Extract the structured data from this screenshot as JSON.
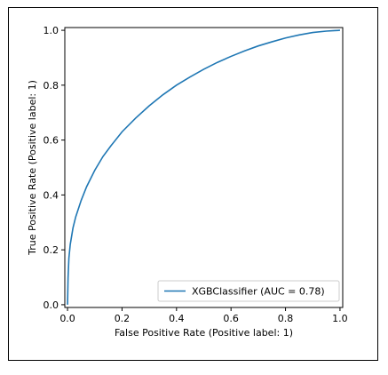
{
  "chart_data": {
    "type": "line",
    "title": "",
    "xlabel": "False Positive Rate (Positive label: 1)",
    "ylabel": "True Positive Rate (Positive label: 1)",
    "xlim": [
      -0.01,
      1.01
    ],
    "ylim": [
      -0.01,
      1.01
    ],
    "xticks": [
      "0.0",
      "0.2",
      "0.4",
      "0.6",
      "0.8",
      "1.0"
    ],
    "yticks": [
      "0.0",
      "0.2",
      "0.4",
      "0.6",
      "0.8",
      "1.0"
    ],
    "legend_position": "lower-right",
    "series": [
      {
        "name": "XGBClassifier (AUC = 0.78)",
        "color": "#1f77b4",
        "x": [
          0.0,
          0.002,
          0.005,
          0.01,
          0.02,
          0.03,
          0.05,
          0.07,
          0.1,
          0.13,
          0.16,
          0.2,
          0.25,
          0.3,
          0.35,
          0.4,
          0.45,
          0.5,
          0.55,
          0.6,
          0.65,
          0.7,
          0.75,
          0.8,
          0.85,
          0.9,
          0.95,
          0.98,
          1.0
        ],
        "y": [
          0.0,
          0.1,
          0.17,
          0.22,
          0.28,
          0.32,
          0.38,
          0.43,
          0.49,
          0.54,
          0.58,
          0.63,
          0.68,
          0.725,
          0.765,
          0.8,
          0.83,
          0.858,
          0.883,
          0.905,
          0.925,
          0.943,
          0.958,
          0.972,
          0.983,
          0.992,
          0.997,
          0.999,
          1.0
        ]
      }
    ]
  }
}
